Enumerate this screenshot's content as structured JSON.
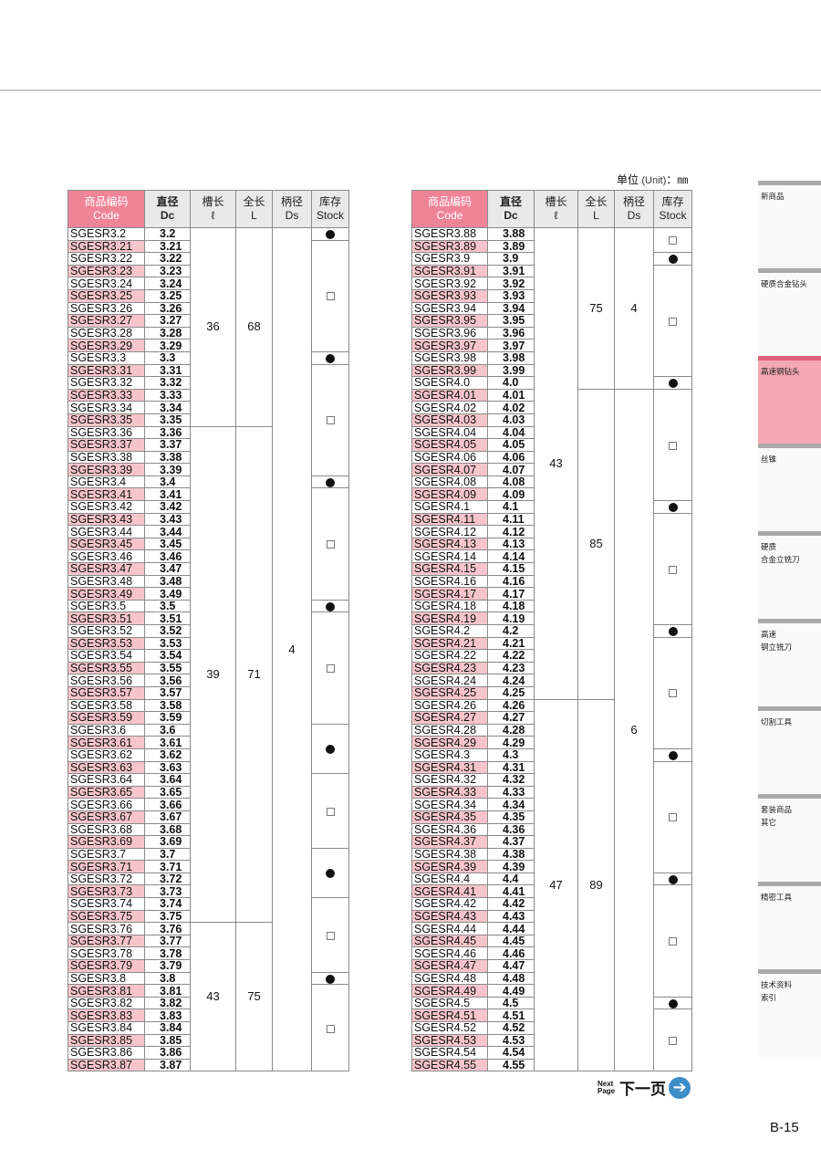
{
  "unit_label": {
    "zh": "单位",
    "en": "(Unit)",
    "mm": "：㎜"
  },
  "headers": {
    "code": [
      "商品编码",
      "Code"
    ],
    "dc": [
      "直径",
      "Dc"
    ],
    "flute": [
      "槽长",
      "ℓ"
    ],
    "length": [
      "全长",
      "L"
    ],
    "shank": [
      "柄径",
      "Ds"
    ],
    "stock": [
      "库存",
      "Stock"
    ]
  },
  "stock_symbols": {
    "in_stock": "●",
    "not_stock": "□"
  },
  "tables": [
    {
      "rows": [
        [
          "SGESR3.2",
          "3.2"
        ],
        [
          "SGESR3.21",
          "3.21"
        ],
        [
          "SGESR3.22",
          "3.22"
        ],
        [
          "SGESR3.23",
          "3.23"
        ],
        [
          "SGESR3.24",
          "3.24"
        ],
        [
          "SGESR3.25",
          "3.25"
        ],
        [
          "SGESR3.26",
          "3.26"
        ],
        [
          "SGESR3.27",
          "3.27"
        ],
        [
          "SGESR3.28",
          "3.28"
        ],
        [
          "SGESR3.29",
          "3.29"
        ],
        [
          "SGESR3.3",
          "3.3"
        ],
        [
          "SGESR3.31",
          "3.31"
        ],
        [
          "SGESR3.32",
          "3.32"
        ],
        [
          "SGESR3.33",
          "3.33"
        ],
        [
          "SGESR3.34",
          "3.34"
        ],
        [
          "SGESR3.35",
          "3.35"
        ],
        [
          "SGESR3.36",
          "3.36"
        ],
        [
          "SGESR3.37",
          "3.37"
        ],
        [
          "SGESR3.38",
          "3.38"
        ],
        [
          "SGESR3.39",
          "3.39"
        ],
        [
          "SGESR3.4",
          "3.4"
        ],
        [
          "SGESR3.41",
          "3.41"
        ],
        [
          "SGESR3.42",
          "3.42"
        ],
        [
          "SGESR3.43",
          "3.43"
        ],
        [
          "SGESR3.44",
          "3.44"
        ],
        [
          "SGESR3.45",
          "3.45"
        ],
        [
          "SGESR3.46",
          "3.46"
        ],
        [
          "SGESR3.47",
          "3.47"
        ],
        [
          "SGESR3.48",
          "3.48"
        ],
        [
          "SGESR3.49",
          "3.49"
        ],
        [
          "SGESR3.5",
          "3.5"
        ],
        [
          "SGESR3.51",
          "3.51"
        ],
        [
          "SGESR3.52",
          "3.52"
        ],
        [
          "SGESR3.53",
          "3.53"
        ],
        [
          "SGESR3.54",
          "3.54"
        ],
        [
          "SGESR3.55",
          "3.55"
        ],
        [
          "SGESR3.56",
          "3.56"
        ],
        [
          "SGESR3.57",
          "3.57"
        ],
        [
          "SGESR3.58",
          "3.58"
        ],
        [
          "SGESR3.59",
          "3.59"
        ],
        [
          "SGESR3.6",
          "3.6"
        ],
        [
          "SGESR3.61",
          "3.61"
        ],
        [
          "SGESR3.62",
          "3.62"
        ],
        [
          "SGESR3.63",
          "3.63"
        ],
        [
          "SGESR3.64",
          "3.64"
        ],
        [
          "SGESR3.65",
          "3.65"
        ],
        [
          "SGESR3.66",
          "3.66"
        ],
        [
          "SGESR3.67",
          "3.67"
        ],
        [
          "SGESR3.68",
          "3.68"
        ],
        [
          "SGESR3.69",
          "3.69"
        ],
        [
          "SGESR3.7",
          "3.7"
        ],
        [
          "SGESR3.71",
          "3.71"
        ],
        [
          "SGESR3.72",
          "3.72"
        ],
        [
          "SGESR3.73",
          "3.73"
        ],
        [
          "SGESR3.74",
          "3.74"
        ],
        [
          "SGESR3.75",
          "3.75"
        ],
        [
          "SGESR3.76",
          "3.76"
        ],
        [
          "SGESR3.77",
          "3.77"
        ],
        [
          "SGESR3.78",
          "3.78"
        ],
        [
          "SGESR3.79",
          "3.79"
        ],
        [
          "SGESR3.8",
          "3.8"
        ],
        [
          "SGESR3.81",
          "3.81"
        ],
        [
          "SGESR3.82",
          "3.82"
        ],
        [
          "SGESR3.83",
          "3.83"
        ],
        [
          "SGESR3.84",
          "3.84"
        ],
        [
          "SGESR3.85",
          "3.85"
        ],
        [
          "SGESR3.86",
          "3.86"
        ],
        [
          "SGESR3.87",
          "3.87"
        ]
      ],
      "flute": [
        {
          "value": "36",
          "rows": 16
        },
        {
          "value": "39",
          "rows": 40
        },
        {
          "value": "43",
          "rows": 12
        }
      ],
      "length": [
        {
          "value": "68",
          "rows": 16
        },
        {
          "value": "71",
          "rows": 40
        },
        {
          "value": "75",
          "rows": 12
        }
      ],
      "shank": [
        {
          "value": "4",
          "rows": 68
        }
      ],
      "stock": [
        {
          "in_stock": true,
          "rows": 1
        },
        {
          "in_stock": false,
          "rows": 9
        },
        {
          "in_stock": true,
          "rows": 1
        },
        {
          "in_stock": false,
          "rows": 9
        },
        {
          "in_stock": true,
          "rows": 1
        },
        {
          "in_stock": false,
          "rows": 9
        },
        {
          "in_stock": true,
          "rows": 1
        },
        {
          "in_stock": false,
          "rows": 9
        },
        {
          "in_stock": true,
          "rows": 4
        },
        {
          "in_stock": false,
          "rows": 6
        },
        {
          "in_stock": true,
          "rows": 4
        },
        {
          "in_stock": false,
          "rows": 6
        },
        {
          "in_stock": true,
          "rows": 1
        },
        {
          "in_stock": false,
          "rows": 7
        }
      ]
    },
    {
      "rows": [
        [
          "SGESR3.88",
          "3.88"
        ],
        [
          "SGESR3.89",
          "3.89"
        ],
        [
          "SGESR3.9",
          "3.9"
        ],
        [
          "SGESR3.91",
          "3.91"
        ],
        [
          "SGESR3.92",
          "3.92"
        ],
        [
          "SGESR3.93",
          "3.93"
        ],
        [
          "SGESR3.94",
          "3.94"
        ],
        [
          "SGESR3.95",
          "3.95"
        ],
        [
          "SGESR3.96",
          "3.96"
        ],
        [
          "SGESR3.97",
          "3.97"
        ],
        [
          "SGESR3.98",
          "3.98"
        ],
        [
          "SGESR3.99",
          "3.99"
        ],
        [
          "SGESR4.0",
          "4.0"
        ],
        [
          "SGESR4.01",
          "4.01"
        ],
        [
          "SGESR4.02",
          "4.02"
        ],
        [
          "SGESR4.03",
          "4.03"
        ],
        [
          "SGESR4.04",
          "4.04"
        ],
        [
          "SGESR4.05",
          "4.05"
        ],
        [
          "SGESR4.06",
          "4.06"
        ],
        [
          "SGESR4.07",
          "4.07"
        ],
        [
          "SGESR4.08",
          "4.08"
        ],
        [
          "SGESR4.09",
          "4.09"
        ],
        [
          "SGESR4.1",
          "4.1"
        ],
        [
          "SGESR4.11",
          "4.11"
        ],
        [
          "SGESR4.12",
          "4.12"
        ],
        [
          "SGESR4.13",
          "4.13"
        ],
        [
          "SGESR4.14",
          "4.14"
        ],
        [
          "SGESR4.15",
          "4.15"
        ],
        [
          "SGESR4.16",
          "4.16"
        ],
        [
          "SGESR4.17",
          "4.17"
        ],
        [
          "SGESR4.18",
          "4.18"
        ],
        [
          "SGESR4.19",
          "4.19"
        ],
        [
          "SGESR4.2",
          "4.2"
        ],
        [
          "SGESR4.21",
          "4.21"
        ],
        [
          "SGESR4.22",
          "4.22"
        ],
        [
          "SGESR4.23",
          "4.23"
        ],
        [
          "SGESR4.24",
          "4.24"
        ],
        [
          "SGESR4.25",
          "4.25"
        ],
        [
          "SGESR4.26",
          "4.26"
        ],
        [
          "SGESR4.27",
          "4.27"
        ],
        [
          "SGESR4.28",
          "4.28"
        ],
        [
          "SGESR4.29",
          "4.29"
        ],
        [
          "SGESR4.3",
          "4.3"
        ],
        [
          "SGESR4.31",
          "4.31"
        ],
        [
          "SGESR4.32",
          "4.32"
        ],
        [
          "SGESR4.33",
          "4.33"
        ],
        [
          "SGESR4.34",
          "4.34"
        ],
        [
          "SGESR4.35",
          "4.35"
        ],
        [
          "SGESR4.36",
          "4.36"
        ],
        [
          "SGESR4.37",
          "4.37"
        ],
        [
          "SGESR4.38",
          "4.38"
        ],
        [
          "SGESR4.39",
          "4.39"
        ],
        [
          "SGESR4.4",
          "4.4"
        ],
        [
          "SGESR4.41",
          "4.41"
        ],
        [
          "SGESR4.42",
          "4.42"
        ],
        [
          "SGESR4.43",
          "4.43"
        ],
        [
          "SGESR4.44",
          "4.44"
        ],
        [
          "SGESR4.45",
          "4.45"
        ],
        [
          "SGESR4.46",
          "4.46"
        ],
        [
          "SGESR4.47",
          "4.47"
        ],
        [
          "SGESR4.48",
          "4.48"
        ],
        [
          "SGESR4.49",
          "4.49"
        ],
        [
          "SGESR4.5",
          "4.5"
        ],
        [
          "SGESR4.51",
          "4.51"
        ],
        [
          "SGESR4.52",
          "4.52"
        ],
        [
          "SGESR4.53",
          "4.53"
        ],
        [
          "SGESR4.54",
          "4.54"
        ],
        [
          "SGESR4.55",
          "4.55"
        ]
      ],
      "flute": [
        {
          "value": "43",
          "rows": 38
        },
        {
          "value": "47",
          "rows": 30
        }
      ],
      "length": [
        {
          "value": "75",
          "rows": 13
        },
        {
          "value": "85",
          "rows": 25
        },
        {
          "value": "89",
          "rows": 30
        }
      ],
      "shank": [
        {
          "value": "4",
          "rows": 13
        },
        {
          "value": "6",
          "rows": 55
        }
      ],
      "stock": [
        {
          "in_stock": false,
          "rows": 2
        },
        {
          "in_stock": true,
          "rows": 1
        },
        {
          "in_stock": false,
          "rows": 9
        },
        {
          "in_stock": true,
          "rows": 1
        },
        {
          "in_stock": false,
          "rows": 9
        },
        {
          "in_stock": true,
          "rows": 1
        },
        {
          "in_stock": false,
          "rows": 9
        },
        {
          "in_stock": true,
          "rows": 1
        },
        {
          "in_stock": false,
          "rows": 9
        },
        {
          "in_stock": true,
          "rows": 1
        },
        {
          "in_stock": false,
          "rows": 9
        },
        {
          "in_stock": true,
          "rows": 1
        },
        {
          "in_stock": false,
          "rows": 9
        },
        {
          "in_stock": true,
          "rows": 1
        },
        {
          "in_stock": false,
          "rows": 5
        }
      ]
    }
  ],
  "sidebar": {
    "active": 2,
    "items": [
      "新商品",
      "硬质合金钻头",
      "高速钢钻头",
      "丝锥",
      "硬质\n合金立铣刀",
      "高速\n钢立铣刀",
      "切割工具",
      "套装商品\n其它",
      "精密工具",
      "技术资料\n索引"
    ]
  },
  "next_page": {
    "en": [
      "Next",
      "Page"
    ],
    "zh": "下一页",
    "icon": "arrow-right-circle-icon"
  },
  "page_number": "B-15",
  "colors": {
    "code_header": "#f08497",
    "code_highlight": "#f6c5cb",
    "active_tab": "#f4a8b1",
    "next_arrow": "#3d8dc8"
  }
}
